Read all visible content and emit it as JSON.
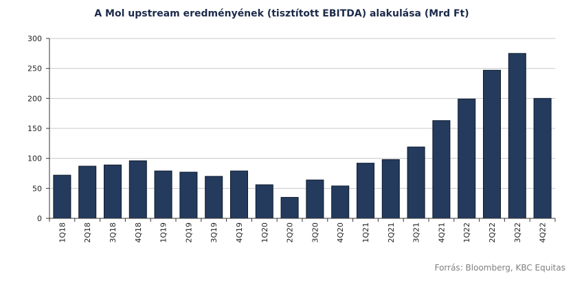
{
  "chart_data": {
    "type": "bar",
    "title": "A Mol upstream eredményének  (tisztított EBITDA) alakulása (Mrd Ft)",
    "categories": [
      "1Q18",
      "2Q18",
      "3Q18",
      "4Q18",
      "1Q19",
      "2Q19",
      "3Q19",
      "4Q19",
      "1Q20",
      "2Q20",
      "3Q20",
      "4Q20",
      "1Q21",
      "2Q21",
      "3Q21",
      "4Q21",
      "1Q22",
      "2Q22",
      "3Q22",
      "4Q22"
    ],
    "values": [
      72,
      87,
      89,
      96,
      79,
      77,
      70,
      79,
      56,
      35,
      64,
      54,
      92,
      98,
      119,
      163,
      199,
      247,
      275,
      200
    ],
    "ylim": [
      0,
      300
    ],
    "yticks": [
      0,
      50,
      100,
      150,
      200,
      250,
      300
    ],
    "grid": true,
    "bar_color": "#243b5e",
    "source": "Forrás: Bloomberg, KBC Equitas"
  }
}
